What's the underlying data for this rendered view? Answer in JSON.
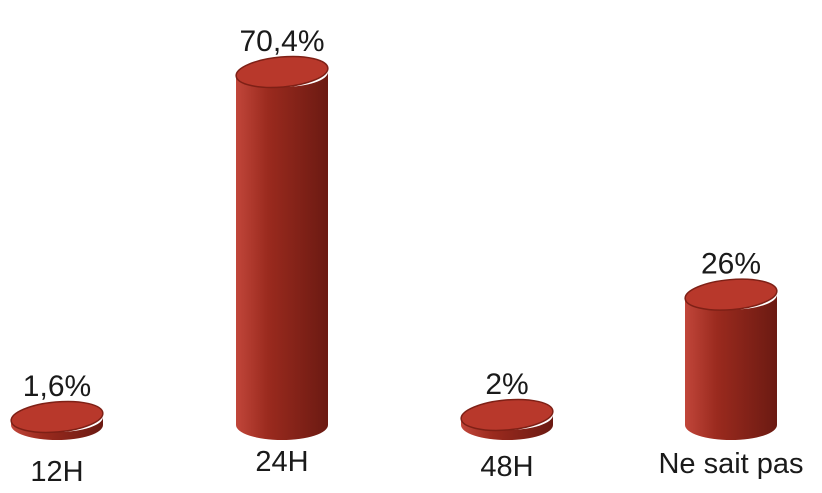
{
  "chart_data": {
    "type": "bar",
    "style": "3d-cylinder",
    "categories": [
      "12H",
      "24H",
      "48H",
      "Ne sait pas"
    ],
    "values": [
      1.6,
      70.4,
      2,
      26
    ],
    "value_labels": [
      "1,6%",
      "70,4%",
      "2%",
      "26%"
    ],
    "unit": "%",
    "title": "",
    "xlabel": "",
    "ylabel": "",
    "ylim": [
      0,
      70.4
    ],
    "grid": false,
    "legend": "none",
    "colors": {
      "bar_body": "#9a2a1e",
      "bar_highlight": "#c1463a",
      "bar_shadow": "#6b1a12",
      "bar_top": "#b8382b",
      "bar_top_edge": "#7e2016"
    }
  }
}
